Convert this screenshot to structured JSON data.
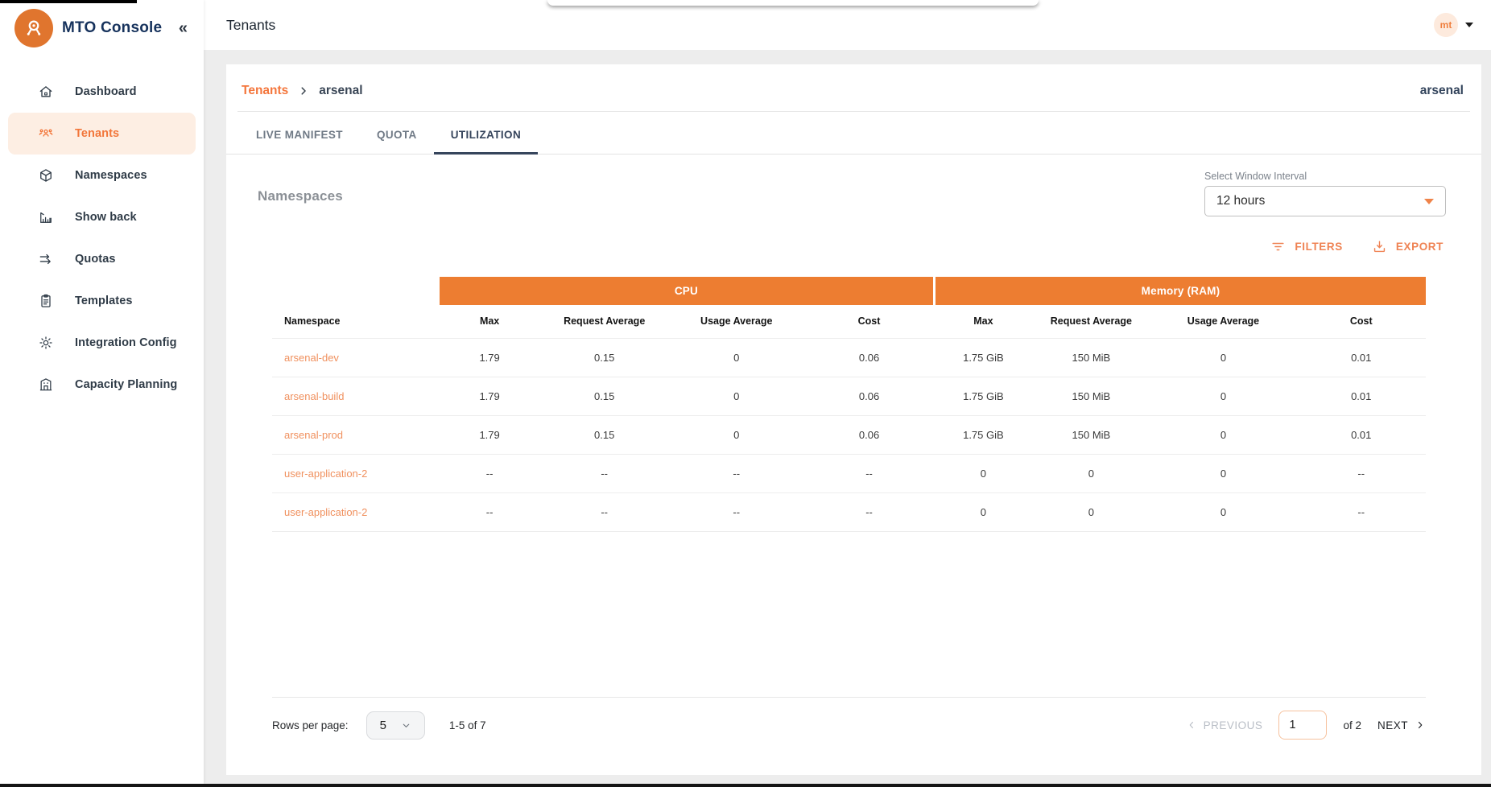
{
  "topbar": {
    "title": "Tenants",
    "avatar_initials": "mt"
  },
  "sidebar": {
    "brand": "MTO Console",
    "collapse_icon": "«",
    "items": [
      {
        "label": "Dashboard",
        "icon": "home-icon",
        "active": false
      },
      {
        "label": "Tenants",
        "icon": "tenants-icon",
        "active": true
      },
      {
        "label": "Namespaces",
        "icon": "cube-icon",
        "active": false
      },
      {
        "label": "Show back",
        "icon": "chart-icon",
        "active": false
      },
      {
        "label": "Quotas",
        "icon": "quota-icon",
        "active": false
      },
      {
        "label": "Templates",
        "icon": "clipboard-icon",
        "active": false
      },
      {
        "label": "Integration Config",
        "icon": "gear-icon",
        "active": false
      },
      {
        "label": "Capacity Planning",
        "icon": "building-icon",
        "active": false
      }
    ]
  },
  "breadcrumb": {
    "parent": "Tenants",
    "current": "arsenal",
    "right_label": "arsenal"
  },
  "tabs": [
    {
      "label": "LIVE MANIFEST",
      "active": false
    },
    {
      "label": "QUOTA",
      "active": false
    },
    {
      "label": "UTILIZATION",
      "active": true
    }
  ],
  "section": {
    "heading": "Namespaces",
    "interval": {
      "label": "Select Window Interval",
      "value": "12 hours"
    },
    "actions": {
      "filters": "FILTERS",
      "export": "EXPORT"
    }
  },
  "table": {
    "groups": [
      {
        "label": "CPU"
      },
      {
        "label": "Memory (RAM)"
      }
    ],
    "columns": [
      "Namespace",
      "Max",
      "Request Average",
      "Usage Average",
      "Cost",
      "Max",
      "Request Average",
      "Usage Average",
      "Cost"
    ],
    "rows": [
      {
        "namespace": "arsenal-dev",
        "cells": [
          "1.79",
          "0.15",
          "0",
          "0.06",
          "1.75 GiB",
          "150 MiB",
          "0",
          "0.01"
        ]
      },
      {
        "namespace": "arsenal-build",
        "cells": [
          "1.79",
          "0.15",
          "0",
          "0.06",
          "1.75 GiB",
          "150 MiB",
          "0",
          "0.01"
        ]
      },
      {
        "namespace": "arsenal-prod",
        "cells": [
          "1.79",
          "0.15",
          "0",
          "0.06",
          "1.75 GiB",
          "150 MiB",
          "0",
          "0.01"
        ]
      },
      {
        "namespace": "user-application-2",
        "cells": [
          "--",
          "--",
          "--",
          "--",
          "0",
          "0",
          "0",
          "--"
        ]
      },
      {
        "namespace": "user-application-2",
        "cells": [
          "--",
          "--",
          "--",
          "--",
          "0",
          "0",
          "0",
          "--"
        ]
      }
    ]
  },
  "pagination": {
    "rows_per_page_label": "Rows per page:",
    "rows_per_page": "5",
    "range": "1-5 of 7",
    "previous": "PREVIOUS",
    "page": "1",
    "of": "of 2",
    "next": "NEXT"
  },
  "colors": {
    "accent_orange": "#ed7d31",
    "link_orange": "#f0915f",
    "active_item_bg": "#fdeee3",
    "navy": "#36455c"
  }
}
